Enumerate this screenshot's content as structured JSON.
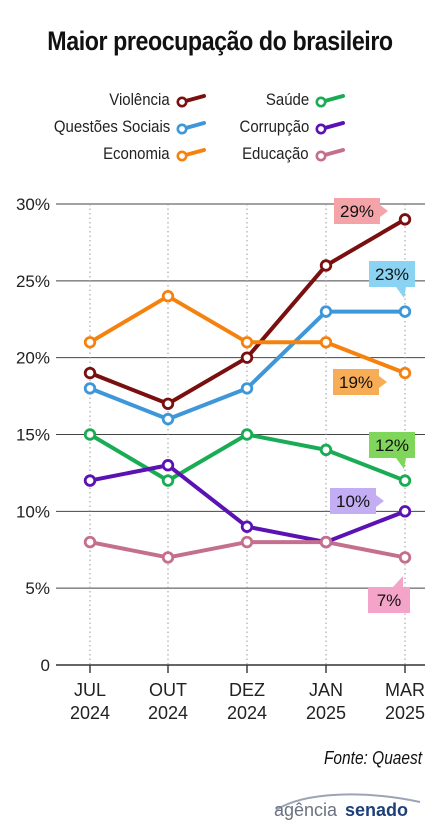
{
  "title": "Maior preocupação do brasileiro",
  "source": "Fonte: Quaest",
  "logo": {
    "part1": "agência",
    "part2": "senado"
  },
  "chart_data": {
    "type": "line",
    "title": "Maior preocupação do brasileiro",
    "x": [
      "JUL 2024",
      "OUT 2024",
      "DEZ 2024",
      "JAN 2025",
      "MAR 2025"
    ],
    "x_ticks": [
      {
        "line1": "JUL",
        "line2": "2024"
      },
      {
        "line1": "OUT",
        "line2": "2024"
      },
      {
        "line1": "DEZ",
        "line2": "2024"
      },
      {
        "line1": "JAN",
        "line2": "2025"
      },
      {
        "line1": "MAR",
        "line2": "2025"
      }
    ],
    "ylim": [
      0,
      30
    ],
    "y_ticks": [
      "0",
      "5%",
      "10%",
      "15%",
      "20%",
      "25%",
      "30%"
    ],
    "grid": "horizontal-and-vertical-dotted",
    "legend_placement": "top",
    "series": [
      {
        "name": "Violência",
        "color": "#7a0f0f",
        "values": [
          19,
          17,
          20,
          26,
          29
        ],
        "end_label": "29%",
        "label_color": "#f4a3a8"
      },
      {
        "name": "Questões Sociais",
        "color": "#3d97d8",
        "values": [
          18,
          16,
          18,
          23,
          23
        ],
        "end_label": "23%",
        "label_color": "#8ad3f2"
      },
      {
        "name": "Economia",
        "color": "#f5820f",
        "values": [
          21,
          24,
          21,
          21,
          19
        ],
        "end_label": "19%",
        "label_color": "#f6ad55"
      },
      {
        "name": "Saúde",
        "color": "#19ac55",
        "values": [
          15,
          12,
          15,
          14,
          12
        ],
        "end_label": "12%",
        "label_color": "#7fd65a"
      },
      {
        "name": "Corrupção",
        "color": "#5b12b3",
        "values": [
          12,
          13,
          9,
          8,
          10
        ],
        "end_label": "10%",
        "label_color": "#c3aef3"
      },
      {
        "name": "Educação",
        "color": "#c56f8e",
        "values": [
          8,
          7,
          8,
          8,
          7
        ],
        "end_label": "7%",
        "label_color": "#f4a4c8"
      }
    ]
  }
}
